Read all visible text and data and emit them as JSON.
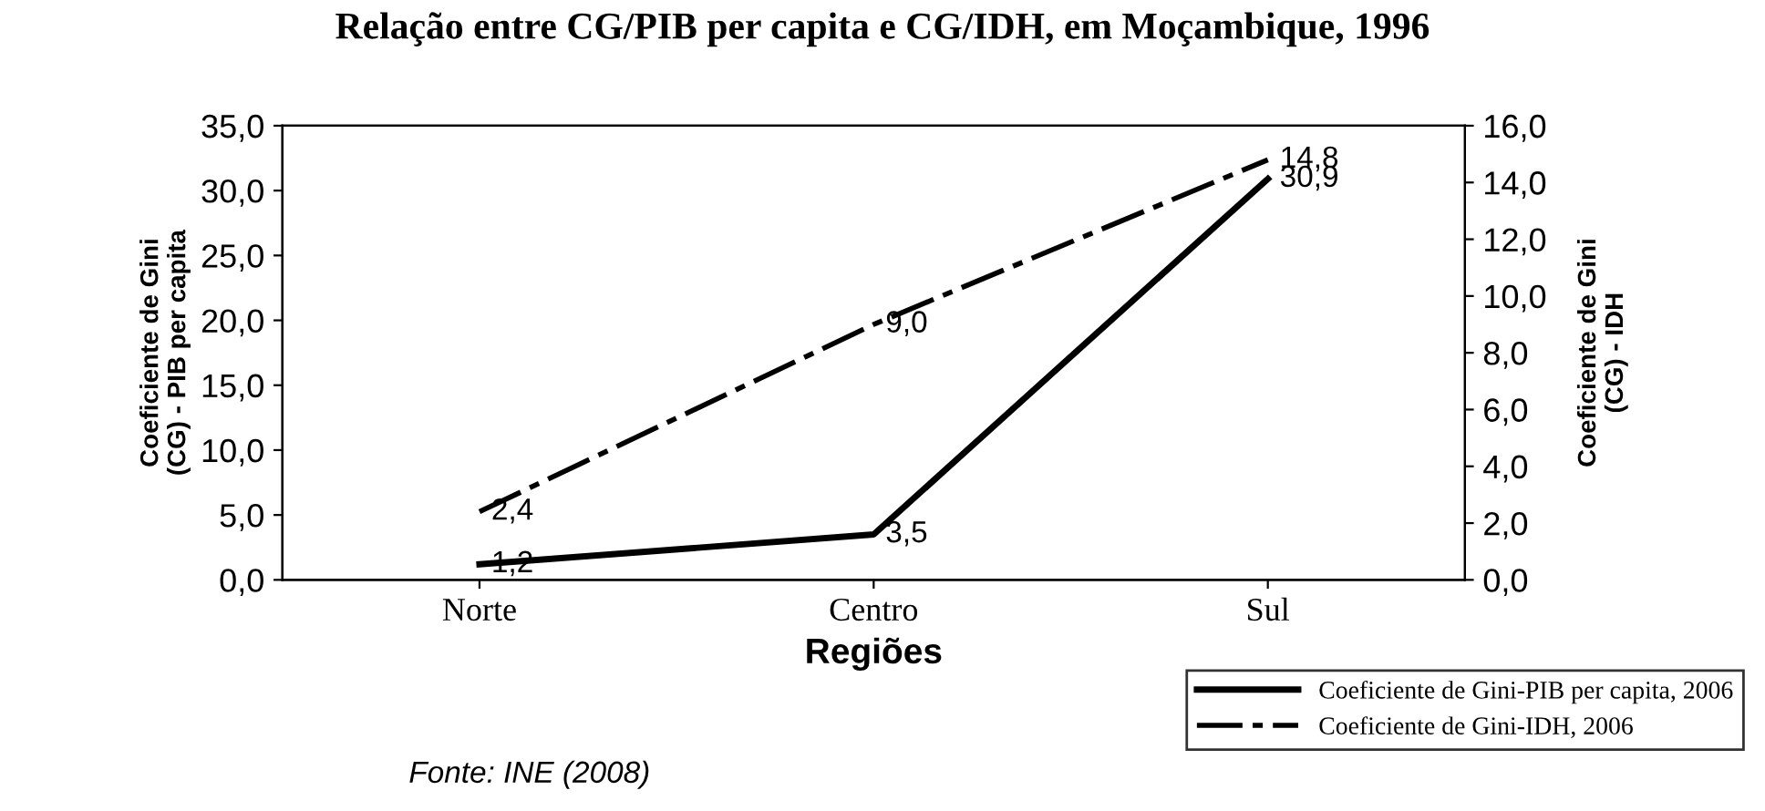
{
  "chart_data": {
    "type": "line",
    "title": "Relação entre CG/PIB per capita e CG/IDH, em Moçambique, 1996",
    "xlabel": "Regiões",
    "ylabel": "Coeficiente de Gini\n(CG) - PIB per capita",
    "y2label": "Coeficiente de Gini\n(CG) - IDH",
    "annotations": [
      "Fonte: INE (2008)"
    ],
    "categories": [
      "Norte",
      "Centro",
      "Sul"
    ],
    "series": [
      {
        "name": "Coeficiente de Gini-PIB per capita, 2006",
        "color": "#000000",
        "values": [
          1.2,
          3.5,
          30.9
        ],
        "value_labels": [
          "1,2",
          "3,5",
          "30,9"
        ],
        "line_style": "solid"
      },
      {
        "name": "Coeficiente de Gini-IDH, 2006",
        "color": "#000000",
        "values": [
          2.4,
          9.0,
          14.8
        ],
        "value_labels": [
          "2,4",
          "9,0",
          "14,8"
        ],
        "axis": "y2",
        "line_style": "dashed"
      }
    ],
    "ylim": [
      0,
      35
    ],
    "yticks": [
      {
        "value": 0,
        "label": "0,0"
      },
      {
        "value": 5,
        "label": "5,0"
      },
      {
        "value": 10,
        "label": "10,0"
      },
      {
        "value": 15,
        "label": "15,0"
      },
      {
        "value": 20,
        "label": "20,0"
      },
      {
        "value": 25,
        "label": "25,0"
      },
      {
        "value": 30,
        "label": "30,0"
      },
      {
        "value": 35,
        "label": "35,0"
      }
    ],
    "y2lim": [
      0,
      16
    ],
    "y2ticks": [
      {
        "value": 0,
        "label": "0,0"
      },
      {
        "value": 2,
        "label": "2,0"
      },
      {
        "value": 4,
        "label": "4,0"
      },
      {
        "value": 6,
        "label": "6,0"
      },
      {
        "value": 8,
        "label": "8,0"
      },
      {
        "value": 10,
        "label": "10,0"
      },
      {
        "value": 12,
        "label": "12,0"
      },
      {
        "value": 14,
        "label": "14,0"
      },
      {
        "value": 16,
        "label": "16,0"
      }
    ],
    "legend": "bottom right",
    "grid": false,
    "marker": "none"
  }
}
